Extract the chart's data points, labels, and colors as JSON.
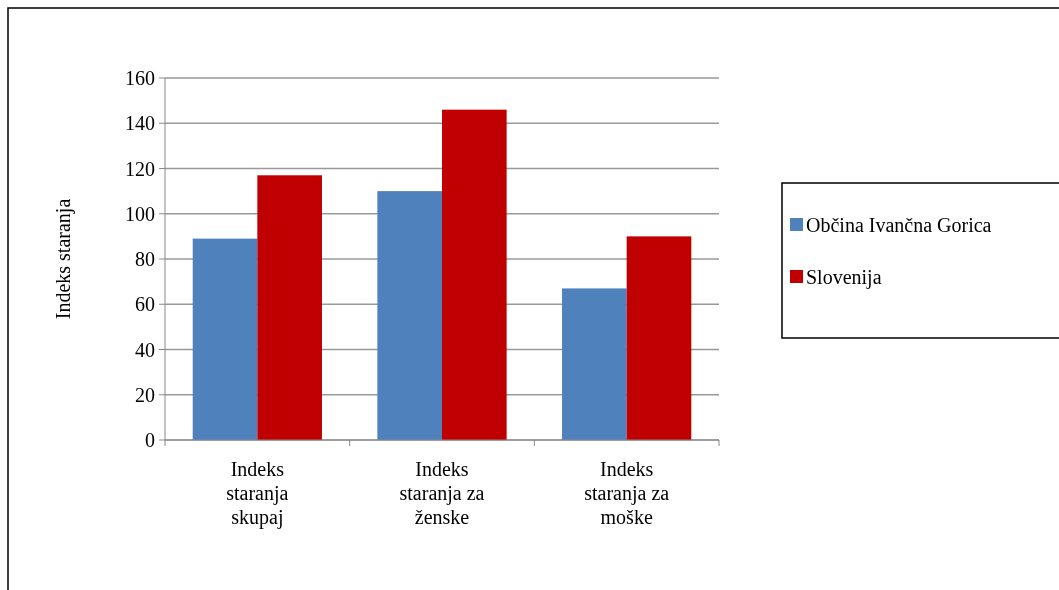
{
  "chart_data": {
    "type": "bar",
    "ylabel": "Indeks staranja",
    "categories": [
      "Indeks staranja skupaj",
      "Indeks staranja za ženske",
      "Indeks staranja za moške"
    ],
    "series": [
      {
        "name": "Občina Ivančna Gorica",
        "color": "#4f81bd",
        "values": [
          89,
          110,
          67
        ]
      },
      {
        "name": "Slovenija",
        "color": "#c00000",
        "values": [
          117,
          146,
          90
        ]
      }
    ],
    "ylim": [
      0,
      160
    ],
    "yticks": [
      0,
      20,
      40,
      60,
      80,
      100,
      120,
      140,
      160
    ],
    "grid": "y",
    "legend": "right"
  }
}
